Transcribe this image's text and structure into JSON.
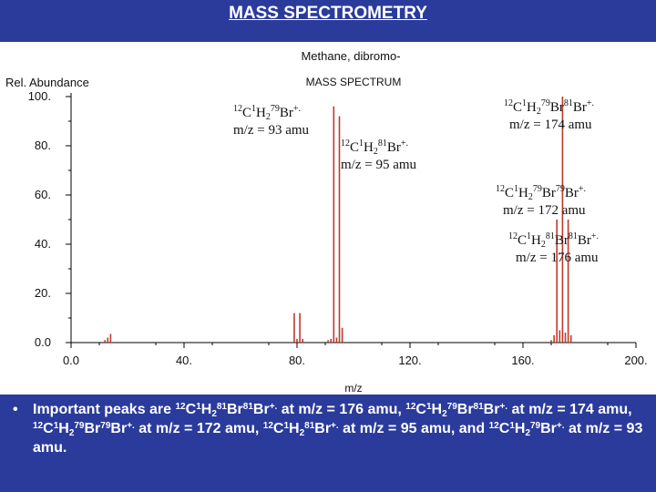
{
  "slide": {
    "title": "MASS SPECTROMETRY"
  },
  "chart_data": {
    "type": "bar",
    "title": "Methane, dibromo-",
    "subtitle": "MASS SPECTRUM",
    "ylabel": "Rel. Abundance",
    "xlabel": "m/z",
    "xlim": [
      0,
      200
    ],
    "ylim": [
      0,
      100
    ],
    "x_ticks": [
      0,
      40,
      80,
      120,
      160,
      200
    ],
    "x_tick_labels": [
      "0.0",
      "40.",
      "80.",
      "120.",
      "160.",
      "200."
    ],
    "y_ticks": [
      0,
      20,
      40,
      60,
      80,
      100
    ],
    "y_tick_labels": [
      "0.0",
      "20.",
      "40.",
      "60.",
      "80.",
      "100."
    ],
    "bar_color": "#c0392b",
    "peaks": [
      {
        "mz": 12,
        "intensity": 1
      },
      {
        "mz": 13,
        "intensity": 2
      },
      {
        "mz": 14,
        "intensity": 3.5
      },
      {
        "mz": 79,
        "intensity": 12
      },
      {
        "mz": 80,
        "intensity": 1.5
      },
      {
        "mz": 81,
        "intensity": 12
      },
      {
        "mz": 82,
        "intensity": 1.5
      },
      {
        "mz": 91,
        "intensity": 1
      },
      {
        "mz": 92,
        "intensity": 1.5
      },
      {
        "mz": 93,
        "intensity": 96
      },
      {
        "mz": 94,
        "intensity": 2
      },
      {
        "mz": 95,
        "intensity": 92
      },
      {
        "mz": 96,
        "intensity": 6
      },
      {
        "mz": 170,
        "intensity": 1
      },
      {
        "mz": 171,
        "intensity": 3
      },
      {
        "mz": 172,
        "intensity": 50
      },
      {
        "mz": 173,
        "intensity": 5
      },
      {
        "mz": 174,
        "intensity": 100
      },
      {
        "mz": 175,
        "intensity": 4
      },
      {
        "mz": 176,
        "intensity": 50
      },
      {
        "mz": 177,
        "intensity": 3
      }
    ]
  },
  "annotations": {
    "a93": {
      "iso_c": "12",
      "el_c": "C",
      "iso_h": "1",
      "el_h": "H",
      "sub_h": "2",
      "iso_br": "79",
      "el_br": "Br",
      "charge": "+.",
      "mz_text": "m/z = 93 amu"
    },
    "a95": {
      "iso_c": "12",
      "el_c": "C",
      "iso_h": "1",
      "el_h": "H",
      "sub_h": "2",
      "iso_br": "81",
      "el_br": "Br",
      "charge": "+.",
      "mz_text": "m/z = 95 amu"
    },
    "a174": {
      "iso_c": "12",
      "el_c": "C",
      "iso_h": "1",
      "el_h": "H",
      "sub_h": "2",
      "iso_br1": "79",
      "el_br1": "Br",
      "iso_br2": "81",
      "el_br2": "Br",
      "charge": "+.",
      "mz_text": "m/z = 174 amu"
    },
    "a172": {
      "iso_c": "12",
      "el_c": "C",
      "iso_h": "1",
      "el_h": "H",
      "sub_h": "2",
      "iso_br1": "79",
      "el_br1": "Br",
      "iso_br2": "79",
      "el_br2": "Br",
      "charge": "+.",
      "mz_text": "m/z = 172 amu"
    },
    "a176": {
      "iso_c": "12",
      "el_c": "C",
      "iso_h": "1",
      "el_h": "H",
      "sub_h": "2",
      "iso_br1": "81",
      "el_br1": "Br",
      "iso_br2": "81",
      "el_br2": "Br",
      "charge": "+.",
      "mz_text": "m/z = 176 amu"
    }
  },
  "bullet": {
    "marker": "•",
    "t1": "Important peaks are ",
    "f1": {
      "c": "12",
      "C": "C",
      "h": "1",
      "H": "H",
      "n": "2",
      "b1": "81",
      "B1": "Br",
      "b2": "81",
      "B2": "Br",
      "q": "+."
    },
    "t2": " at m/z = 176 amu, ",
    "f2": {
      "c": "12",
      "C": "C",
      "h": "1",
      "H": "H",
      "n": "2",
      "b1": "79",
      "B1": "Br",
      "b2": "81",
      "B2": "Br",
      "q": "+."
    },
    "t3": " at m/z = 174 amu, ",
    "f3": {
      "c": "12",
      "C": "C",
      "h": "1",
      "H": "H",
      "n": "2",
      "b1": "79",
      "B1": "Br",
      "b2": "79",
      "B2": "Br",
      "q": "+."
    },
    "t4": " at m/z = 172 amu, ",
    "f4": {
      "c": "12",
      "C": "C",
      "h": "1",
      "H": "H",
      "n": "2",
      "b1": "81",
      "B1": "Br",
      "q": "+."
    },
    "t5": " at m/z = 95 amu, and ",
    "f5": {
      "c": "12",
      "C": "C",
      "h": "1",
      "H": "H",
      "n": "2",
      "b1": "79",
      "B1": "Br",
      "q": "+."
    },
    "t6": " at m/z = 93 amu."
  }
}
